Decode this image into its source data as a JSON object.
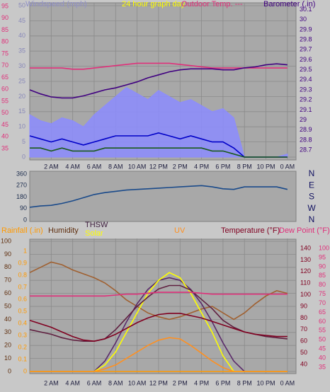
{
  "chart_data": [
    {
      "type": "line",
      "title": "24 hour graph day",
      "ylabel": "Windspeed (mph)",
      "y2label": "Barometer (.in)",
      "x": [
        0,
        1,
        2,
        3,
        4,
        5,
        6,
        7,
        8,
        9,
        10,
        11,
        12,
        13,
        14,
        15,
        16,
        17,
        18,
        19,
        20,
        21,
        22,
        23,
        24
      ],
      "xlim": [
        0,
        24.8
      ],
      "xticks": [
        {
          "value": 2,
          "label": "2 AM"
        },
        {
          "value": 4,
          "label": "4 AM"
        },
        {
          "value": 6,
          "label": "6 AM"
        },
        {
          "value": 8,
          "label": "8 AM"
        },
        {
          "value": 10,
          "label": "10 AM"
        },
        {
          "value": 12,
          "label": "12 PM"
        },
        {
          "value": 14,
          "label": "2 PM"
        },
        {
          "value": 16,
          "label": "4 PM"
        },
        {
          "value": 18,
          "label": "6 PM"
        },
        {
          "value": 20,
          "label": "8 PM"
        },
        {
          "value": 22,
          "label": "10 PM"
        },
        {
          "value": 24,
          "label": "0 AM"
        }
      ],
      "ylim": [
        0,
        50
      ],
      "yticks": [
        0,
        5,
        10,
        15,
        20,
        25,
        30,
        35,
        40,
        45,
        50
      ],
      "y2lim": [
        28.63,
        30.14
      ],
      "y2ticks": [
        28.7,
        28.8,
        28.9,
        29,
        29.1,
        29.2,
        29.3,
        29.4,
        29.5,
        29.6,
        29.7,
        29.8,
        29.9,
        30,
        30.1
      ],
      "y3lim": [
        31.4,
        95.3
      ],
      "y3ticks": [
        35,
        40,
        45,
        50,
        55,
        60,
        65,
        70,
        75,
        80,
        85,
        90,
        95
      ],
      "grid": true,
      "series": [
        {
          "color": "#8c8cff",
          "area": true,
          "values": [
            14,
            12,
            11,
            13,
            12,
            10,
            14,
            17,
            20,
            23,
            21,
            19,
            22,
            20,
            18,
            19,
            17,
            15,
            16,
            13,
            0,
            0,
            0,
            0,
            1
          ]
        },
        {
          "color": "#0000c8",
          "values": [
            7,
            6,
            5,
            6,
            5,
            4,
            5,
            6,
            7,
            7,
            7,
            7,
            8,
            7,
            6,
            7,
            6,
            5,
            5,
            3,
            0,
            0,
            0,
            0,
            0
          ]
        },
        {
          "color": "#1a5a1a",
          "values": [
            3,
            3,
            2,
            3,
            2,
            2,
            2,
            3,
            3,
            3,
            3,
            3,
            3,
            3,
            3,
            3,
            3,
            2,
            2,
            1,
            0,
            0,
            0,
            0,
            0
          ]
        },
        {
          "name": "Outdoor Temp. ---",
          "color": "#e0307a",
          "axis": "y3",
          "values": [
            69,
            69,
            69,
            69,
            68.5,
            68.5,
            69,
            69.5,
            70,
            70.5,
            71,
            71,
            71,
            71,
            70.5,
            70,
            69.5,
            69,
            69,
            69,
            69,
            69,
            69,
            69,
            69
          ]
        },
        {
          "color": "#400080",
          "axis": "y2",
          "values": [
            29.3,
            29.26,
            29.23,
            29.22,
            29.22,
            29.24,
            29.27,
            29.3,
            29.32,
            29.35,
            29.38,
            29.42,
            29.45,
            29.48,
            29.5,
            29.51,
            29.51,
            29.51,
            29.5,
            29.5,
            29.52,
            29.53,
            29.55,
            29.56,
            29.55
          ]
        }
      ]
    },
    {
      "type": "line",
      "x": [
        0,
        1,
        2,
        3,
        4,
        5,
        6,
        7,
        8,
        9,
        10,
        11,
        12,
        13,
        14,
        15,
        16,
        17,
        18,
        19,
        20,
        21,
        22,
        23,
        24
      ],
      "xlim": [
        0,
        24.8
      ],
      "ylim": [
        0,
        360
      ],
      "yticks": [
        0,
        90,
        180,
        270,
        360
      ],
      "dir_labels": [
        "N",
        "W",
        "S",
        "E",
        "N"
      ],
      "series": [
        {
          "color": "#1a4a8a",
          "values": [
            100,
            110,
            115,
            130,
            150,
            175,
            200,
            215,
            225,
            235,
            240,
            245,
            250,
            255,
            260,
            265,
            270,
            260,
            245,
            240,
            260,
            260,
            260,
            260,
            240
          ]
        }
      ]
    },
    {
      "type": "line",
      "ylabel": "Humidity",
      "y2label": "Temperature (°F)",
      "y3label": "Dew Point (°F)",
      "y4label": "Rainfall (.in)",
      "x": [
        0,
        1,
        2,
        3,
        4,
        5,
        6,
        7,
        8,
        9,
        10,
        11,
        12,
        13,
        14,
        15,
        16,
        17,
        18,
        19,
        20,
        21,
        22,
        23,
        24
      ],
      "xlim": [
        0,
        24.8
      ],
      "xticks": [
        {
          "value": 2,
          "label": "2 AM"
        },
        {
          "value": 4,
          "label": "4 AM"
        },
        {
          "value": 6,
          "label": "6 AM"
        },
        {
          "value": 8,
          "label": "8 AM"
        },
        {
          "value": 10,
          "label": "10 AM"
        },
        {
          "value": 12,
          "label": "12 PM"
        },
        {
          "value": 14,
          "label": "2 PM"
        },
        {
          "value": 16,
          "label": "4 PM"
        },
        {
          "value": 18,
          "label": "6 PM"
        },
        {
          "value": 20,
          "label": "8 PM"
        },
        {
          "value": 22,
          "label": "10 PM"
        },
        {
          "value": 24,
          "label": "0 AM"
        }
      ],
      "ylim": [
        0,
        100
      ],
      "yticks": [
        0,
        10,
        20,
        30,
        40,
        50,
        60,
        70,
        80,
        90,
        100
      ],
      "y2lim": [
        33.9,
        146.1
      ],
      "y2ticks": [
        40,
        50,
        60,
        70,
        80,
        90,
        100,
        110,
        120,
        130,
        140
      ],
      "y3lim": [
        32.7,
        103.9
      ],
      "y3ticks": [
        35,
        40,
        45,
        50,
        55,
        60,
        65,
        70,
        75,
        80,
        85,
        90,
        95,
        100
      ],
      "y4lim": [
        0,
        1.082
      ],
      "y4ticks": [
        0,
        0.1,
        0.2,
        0.3,
        0.4,
        0.5,
        0.6,
        0.7,
        0.8,
        0.9,
        1
      ],
      "grid": true,
      "series": [
        {
          "color": "#ff9900",
          "axis": "y4",
          "values": [
            0,
            0,
            0,
            0,
            0,
            0,
            0,
            0,
            0,
            0,
            0,
            0,
            0,
            0,
            0,
            0,
            0,
            0,
            0,
            0,
            0,
            0,
            0,
            0,
            0
          ]
        },
        {
          "color": "#a06030",
          "values": [
            76,
            80,
            84,
            82,
            78,
            75,
            72,
            68,
            62,
            55,
            50,
            45,
            42,
            40,
            42,
            45,
            48,
            50,
            45,
            40,
            45,
            52,
            58,
            62,
            60
          ]
        },
        {
          "color": "#5a2a6a",
          "values": [
            0,
            0,
            0,
            0,
            0,
            0,
            0,
            8,
            22,
            38,
            52,
            63,
            70,
            72,
            70,
            63,
            52,
            38,
            22,
            8,
            0,
            0,
            0,
            0,
            0
          ]
        },
        {
          "name": "Solar",
          "color": "#ffff00",
          "values": [
            0,
            0,
            0,
            0,
            0,
            0,
            0,
            5,
            15,
            30,
            45,
            60,
            70,
            76,
            72,
            60,
            45,
            30,
            12,
            0,
            0,
            0,
            0,
            0,
            0
          ]
        },
        {
          "name": "UV",
          "color": "#ff9020",
          "values": [
            0,
            0,
            0,
            0,
            0,
            0,
            0,
            2,
            5,
            10,
            15,
            20,
            24,
            26,
            25,
            20,
            14,
            8,
            3,
            0,
            0,
            0,
            0,
            0,
            0
          ]
        },
        {
          "name": "THSW",
          "color": "#602040",
          "axis": "y2",
          "values": [
            70,
            68,
            66,
            63,
            61,
            60,
            60,
            62,
            70,
            80,
            90,
            98,
            105,
            108,
            108,
            104,
            96,
            88,
            78,
            72,
            68,
            66,
            64,
            63,
            62
          ]
        },
        {
          "color": "#800020",
          "axis": "y2",
          "values": [
            78,
            75,
            72,
            68,
            64,
            61,
            60,
            62,
            66,
            71,
            76,
            80,
            83,
            84,
            84,
            82,
            80,
            77,
            74,
            71,
            68,
            66,
            65,
            64,
            64
          ]
        },
        {
          "color": "#e0307a",
          "axis": "y3",
          "values": [
            74,
            74,
            74,
            74,
            74,
            74,
            74,
            74,
            74.5,
            75,
            75,
            75.5,
            76,
            76,
            76,
            76,
            75.5,
            75,
            75,
            75,
            75,
            75,
            75,
            75,
            75
          ]
        }
      ]
    }
  ]
}
